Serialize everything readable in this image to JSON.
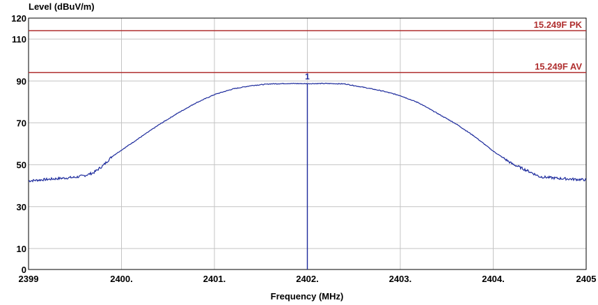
{
  "chart_data": {
    "type": "line",
    "ylabel": "Level (dBuV/m)",
    "xlabel": "Frequency (MHz)",
    "xlim": [
      2399,
      2405
    ],
    "ylim": [
      0,
      120
    ],
    "x_ticks": [
      {
        "value": 2399,
        "label": "2399"
      },
      {
        "value": 2400,
        "label": "2400."
      },
      {
        "value": 2401,
        "label": "2401."
      },
      {
        "value": 2402,
        "label": "2402."
      },
      {
        "value": 2403,
        "label": "2403."
      },
      {
        "value": 2404,
        "label": "2404."
      },
      {
        "value": 2405,
        "label": "2405"
      }
    ],
    "y_ticks": [
      {
        "value": 0,
        "label": "0"
      },
      {
        "value": 10,
        "label": "10"
      },
      {
        "value": 30,
        "label": "30"
      },
      {
        "value": 50,
        "label": "50"
      },
      {
        "value": 70,
        "label": "70"
      },
      {
        "value": 90,
        "label": "90"
      },
      {
        "value": 110,
        "label": "110"
      },
      {
        "value": 120,
        "label": "120"
      }
    ],
    "grid": true,
    "limit_lines": [
      {
        "label": "15.249F PK",
        "value": 114,
        "color": "#b03030"
      },
      {
        "label": "15.249F AV",
        "value": 94,
        "color": "#b03030"
      }
    ],
    "marker": {
      "label": "1",
      "x": 2402.0,
      "y": 88.7,
      "color": "#1c2a9c"
    },
    "series": [
      {
        "color": "#1c2a9c",
        "x": [
          2399.0,
          2399.2,
          2399.4,
          2399.5,
          2399.6,
          2399.7,
          2399.8,
          2399.9,
          2400.0,
          2400.2,
          2400.4,
          2400.6,
          2400.8,
          2401.0,
          2401.2,
          2401.4,
          2401.6,
          2401.8,
          2402.0,
          2402.2,
          2402.4,
          2402.6,
          2402.8,
          2403.0,
          2403.2,
          2403.4,
          2403.6,
          2403.8,
          2404.0,
          2404.2,
          2404.4,
          2404.5,
          2404.7,
          2404.9,
          2405.0
        ],
        "values": [
          42.3,
          43.0,
          43.7,
          44.0,
          44.8,
          46.2,
          49.5,
          54.0,
          57.0,
          63.0,
          69.0,
          74.5,
          79.5,
          83.5,
          86.2,
          87.8,
          88.6,
          88.8,
          88.7,
          88.8,
          88.6,
          87.0,
          85.3,
          83.0,
          79.5,
          74.5,
          69.5,
          63.5,
          56.5,
          50.5,
          46.5,
          44.3,
          43.5,
          43.0,
          42.8
        ]
      }
    ]
  }
}
